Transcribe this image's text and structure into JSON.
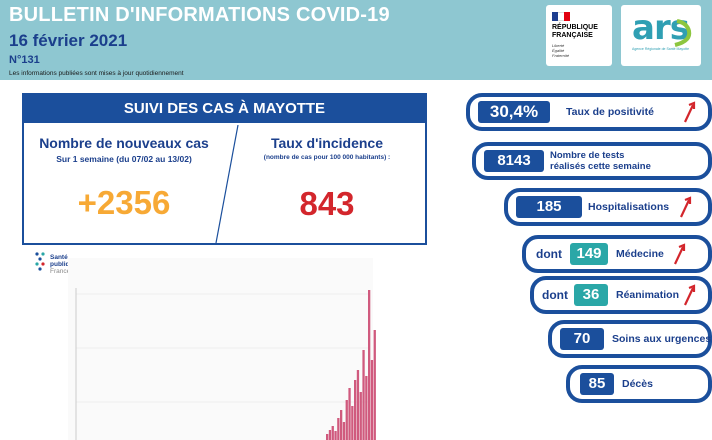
{
  "header": {
    "title": "BULLETIN D'INFORMATIONS COVID-19",
    "date": "16 février 2021",
    "number": "N°131",
    "note": "Les informations publiées sont mises à jour quotidiennement"
  },
  "logos": {
    "republique": {
      "line1": "RÉPUBLIQUE",
      "line2": "FRANÇAISE",
      "motto1": "Liberté",
      "motto2": "Égalité",
      "motto3": "Fraternité"
    },
    "ars": {
      "text": "ars",
      "subtitle": "Agence Régionale de Santé Mayotte"
    }
  },
  "suivi": {
    "heading": "SUIVI DES CAS À MAYOTTE",
    "new_cases": {
      "title": "Nombre de nouveaux cas",
      "subtitle": "Sur 1 semaine (du 07/02 au 13/02)",
      "value": "+2356"
    },
    "incidence": {
      "title": "Taux d'incidence",
      "subtitle": "(nombre de cas pour 100 000 habitants) :",
      "value": "843"
    }
  },
  "chart_logo": {
    "line1": "Santé",
    "line2": "publique",
    "line3": "France"
  },
  "indicators": [
    {
      "value": "30,4%",
      "label": "Taux de positivité",
      "arrow": "up"
    },
    {
      "value": "8143",
      "label_line1": "Nombre de tests",
      "label_line2": "réalisés cette semaine"
    },
    {
      "value": "185",
      "label": "Hospitalisations",
      "arrow": "up"
    },
    {
      "prefix": "dont",
      "value": "149",
      "label": "Médecine",
      "arrow": "up"
    },
    {
      "prefix": "dont",
      "value": "36",
      "label": "Réanimation",
      "arrow": "up"
    },
    {
      "value": "70",
      "label": "Soins aux urgences"
    },
    {
      "value": "85",
      "label": "Décès"
    }
  ],
  "colors": {
    "header_bg": "#8ec7d1",
    "navy": "#1b4f9c",
    "teal": "#2aa7a7",
    "orange": "#f7a935",
    "red": "#d3262c",
    "bars": "#d05a7e"
  }
}
